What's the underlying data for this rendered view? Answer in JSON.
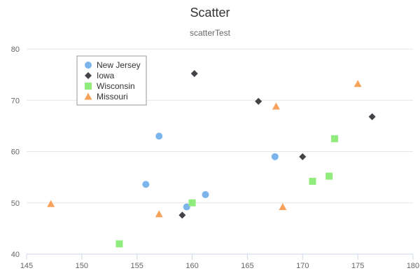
{
  "chart_data": {
    "type": "scatter",
    "title": "Scatter",
    "subtitle": "scatterTest",
    "xlabel": "",
    "ylabel": "",
    "xlim": [
      145,
      180
    ],
    "ylim": [
      40,
      80
    ],
    "xticks": [
      145,
      150,
      155,
      160,
      165,
      170,
      175,
      180
    ],
    "yticks": [
      40,
      50,
      60,
      70,
      80
    ],
    "grid": "horizontal",
    "legend_position": "top-left",
    "series": [
      {
        "name": "New Jersey",
        "marker": "circle",
        "color": "#7cb5ec",
        "points": [
          [
            155.8,
            53.6
          ],
          [
            157.0,
            63.0
          ],
          [
            159.5,
            49.2
          ],
          [
            161.2,
            51.6
          ],
          [
            167.5,
            59.0
          ]
        ]
      },
      {
        "name": "Iowa",
        "marker": "diamond",
        "color": "#434348",
        "points": [
          [
            159.1,
            47.6
          ],
          [
            160.2,
            75.2
          ],
          [
            166.0,
            69.8
          ],
          [
            170.0,
            59.0
          ],
          [
            176.3,
            66.8
          ]
        ]
      },
      {
        "name": "Wisconsin",
        "marker": "square",
        "color": "#90ed7d",
        "points": [
          [
            153.4,
            42.0
          ],
          [
            160.0,
            50.0
          ],
          [
            170.9,
            54.2
          ],
          [
            172.4,
            55.2
          ],
          [
            172.9,
            62.5
          ]
        ]
      },
      {
        "name": "Missouri",
        "marker": "triangle",
        "color": "#f7a35c",
        "points": [
          [
            147.2,
            49.8
          ],
          [
            157.0,
            47.8
          ],
          [
            167.6,
            68.8
          ],
          [
            168.2,
            49.2
          ],
          [
            175.0,
            73.2
          ]
        ]
      }
    ]
  }
}
